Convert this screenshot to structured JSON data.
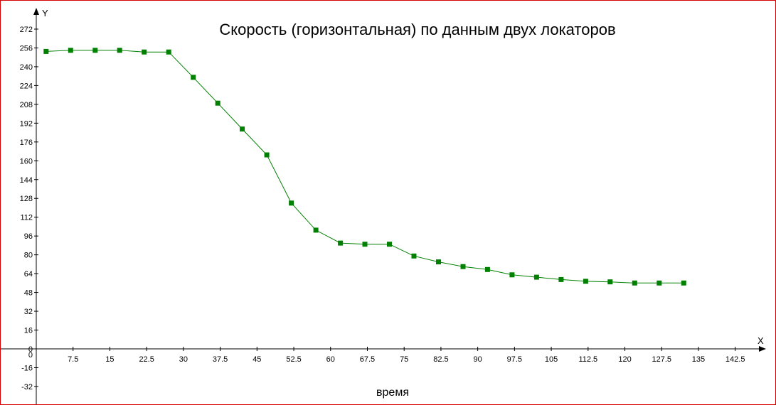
{
  "chart_data": {
    "type": "line",
    "title": "Скорость (горизонтальная) по данным двух локаторов",
    "xlabel": "время",
    "ylabel": "",
    "x_axis_letter": "X",
    "y_axis_letter": "Y",
    "xlim": [
      -2.5,
      150
    ],
    "ylim": [
      -40,
      278
    ],
    "x_ticks": [
      0,
      7.5,
      15,
      22.5,
      30,
      37.5,
      45,
      52.5,
      60,
      67.5,
      75,
      82.5,
      90,
      97.5,
      105,
      112.5,
      120,
      127.5,
      135,
      142.5
    ],
    "y_ticks": [
      -32,
      -16,
      0,
      16,
      32,
      48,
      64,
      80,
      96,
      112,
      128,
      144,
      160,
      176,
      192,
      208,
      224,
      240,
      256,
      272
    ],
    "grid": false,
    "series": [
      {
        "color": "#008000",
        "marker": "square",
        "x": [
          2,
          7,
          12,
          17,
          22,
          27,
          32,
          37,
          42,
          47,
          52,
          57,
          62,
          67,
          72,
          77,
          82,
          87,
          92,
          97,
          102,
          107,
          112,
          117,
          122,
          127,
          132
        ],
        "y": [
          253,
          254,
          254,
          254,
          252.5,
          252.5,
          231,
          209,
          187,
          165,
          124,
          101,
          90,
          89,
          89,
          79,
          74,
          70,
          67.5,
          63,
          61,
          59,
          57.5,
          57,
          56,
          56,
          56
        ]
      }
    ]
  }
}
